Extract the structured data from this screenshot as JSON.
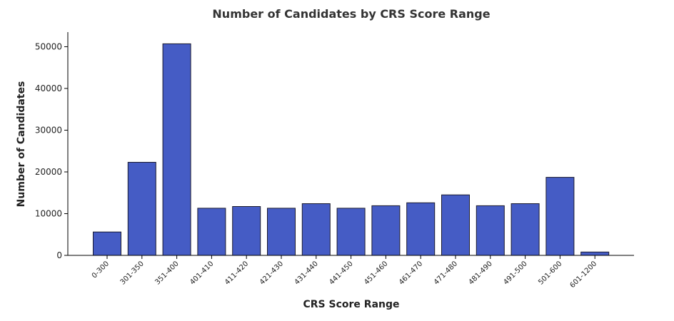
{
  "chart_data": {
    "type": "bar",
    "title": "Number of Candidates by CRS Score Range",
    "xlabel": "CRS Score Range",
    "ylabel": "Number of Candidates",
    "categories": [
      "0-300",
      "301-350",
      "351-400",
      "401-410",
      "411-420",
      "421-430",
      "431-440",
      "441-450",
      "451-460",
      "461-470",
      "471-480",
      "481-490",
      "491-500",
      "501-600",
      "601-1200"
    ],
    "values": [
      5600,
      22300,
      50700,
      11300,
      11700,
      11300,
      12400,
      11300,
      11900,
      12600,
      14500,
      11900,
      12400,
      18700,
      800
    ],
    "ylim": [
      0,
      53500
    ],
    "yticks": [
      0,
      10000,
      20000,
      30000,
      40000,
      50000
    ],
    "bar_color": "#455cc5",
    "grid": false
  }
}
